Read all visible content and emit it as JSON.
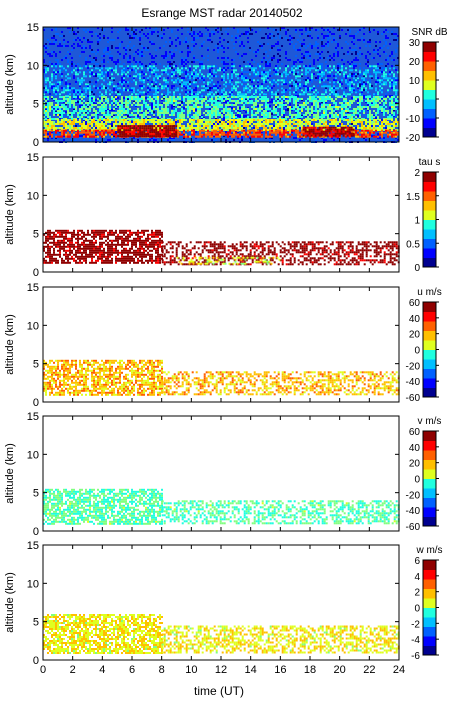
{
  "chart_data": {
    "type": "heatmap",
    "title": "Esrange MST radar 20140502",
    "xlabel": "time (UT)",
    "xlim": [
      0,
      24
    ],
    "xticks": [
      "0",
      "2",
      "4",
      "6",
      "8",
      "10",
      "12",
      "14",
      "16",
      "18",
      "20",
      "22",
      "24"
    ],
    "panels": [
      {
        "id": "snr",
        "ylabel": "altitude (km)",
        "ylim": [
          0,
          15
        ],
        "yticks": [
          "0",
          "5",
          "10",
          "15"
        ],
        "colorbar_label": "SNR dB",
        "clim": [
          -20,
          30
        ],
        "cbar_ticks": [
          "-20",
          "-10",
          "0",
          "10",
          "20",
          "30"
        ],
        "background": "#1e58d8",
        "features": [
          {
            "from_hour": 0,
            "to_hour": 24,
            "from_km": 0,
            "to_km": 15,
            "level": -12,
            "density": 0.25
          },
          {
            "from_hour": 0,
            "to_hour": 24,
            "from_km": 6,
            "to_km": 10,
            "level": -3,
            "density": 0.35
          },
          {
            "from_hour": 0,
            "to_hour": 24,
            "from_km": 3,
            "to_km": 6,
            "level": 3,
            "density": 0.6
          },
          {
            "from_hour": 0,
            "to_hour": 24,
            "from_km": 1.5,
            "to_km": 3,
            "level": 10,
            "density": 0.75
          },
          {
            "from_hour": 0,
            "to_hour": 24,
            "from_km": 0.8,
            "to_km": 1.6,
            "level": 20,
            "density": 0.7
          },
          {
            "from_hour": 5,
            "to_hour": 9,
            "from_km": 0.8,
            "to_km": 2.2,
            "level": 28,
            "density": 0.9
          },
          {
            "from_hour": 17.5,
            "to_hour": 21,
            "from_km": 0.8,
            "to_km": 2.0,
            "level": 28,
            "density": 0.9
          }
        ]
      },
      {
        "id": "tau",
        "ylabel": "altitude (km)",
        "ylim": [
          0,
          15
        ],
        "yticks": [
          "0",
          "5",
          "10",
          "15"
        ],
        "colorbar_label": "tau s",
        "clim": [
          0,
          2
        ],
        "cbar_ticks": [
          "0",
          "0.5",
          "1",
          "1.5",
          "2"
        ],
        "background": "#ffffff",
        "features": [
          {
            "from_hour": 0,
            "to_hour": 8,
            "from_km": 1.2,
            "to_km": 5.5,
            "level": 1.95,
            "density": 0.7
          },
          {
            "from_hour": 8,
            "to_hour": 24,
            "from_km": 1.0,
            "to_km": 4.0,
            "level": 1.95,
            "density": 0.5
          },
          {
            "from_hour": 9,
            "to_hour": 16,
            "from_km": 1.0,
            "to_km": 2.0,
            "level": 1.2,
            "density": 0.3
          }
        ]
      },
      {
        "id": "u",
        "ylabel": "altitude (km)",
        "ylim": [
          0,
          15
        ],
        "yticks": [
          "0",
          "5",
          "10",
          "15"
        ],
        "colorbar_label": "u m/s",
        "clim": [
          -60,
          60
        ],
        "cbar_ticks": [
          "-60",
          "-40",
          "-20",
          "0",
          "20",
          "40",
          "60"
        ],
        "background": "#ffffff",
        "features": [
          {
            "from_hour": 0,
            "to_hour": 8,
            "from_km": 1.0,
            "to_km": 5.5,
            "level": 22,
            "density": 0.7
          },
          {
            "from_hour": 8,
            "to_hour": 24,
            "from_km": 1.0,
            "to_km": 4.0,
            "level": 22,
            "density": 0.5
          }
        ]
      },
      {
        "id": "v",
        "ylabel": "altitude (km)",
        "ylim": [
          0,
          15
        ],
        "yticks": [
          "0",
          "5",
          "10",
          "15"
        ],
        "colorbar_label": "v m/s",
        "clim": [
          -60,
          60
        ],
        "cbar_ticks": [
          "-60",
          "-40",
          "-20",
          "0",
          "20",
          "40",
          "60"
        ],
        "background": "#ffffff",
        "features": [
          {
            "from_hour": 0,
            "to_hour": 8,
            "from_km": 1.0,
            "to_km": 5.5,
            "level": -5,
            "density": 0.7
          },
          {
            "from_hour": 8,
            "to_hour": 24,
            "from_km": 1.0,
            "to_km": 4.0,
            "level": -5,
            "density": 0.5
          }
        ]
      },
      {
        "id": "w",
        "ylabel": "altitude (km)",
        "ylim": [
          0,
          15
        ],
        "yticks": [
          "0",
          "5",
          "10",
          "15"
        ],
        "colorbar_label": "w m/s",
        "clim": [
          -6,
          6
        ],
        "cbar_ticks": [
          "-6",
          "-4",
          "-2",
          "0",
          "2",
          "4",
          "6"
        ],
        "background": "#ffffff",
        "features": [
          {
            "from_hour": 0,
            "to_hour": 8,
            "from_km": 1.0,
            "to_km": 6.0,
            "level": 1.5,
            "density": 0.7
          },
          {
            "from_hour": 8,
            "to_hour": 24,
            "from_km": 1.0,
            "to_km": 4.5,
            "level": 1.5,
            "density": 0.55
          }
        ]
      }
    ]
  }
}
